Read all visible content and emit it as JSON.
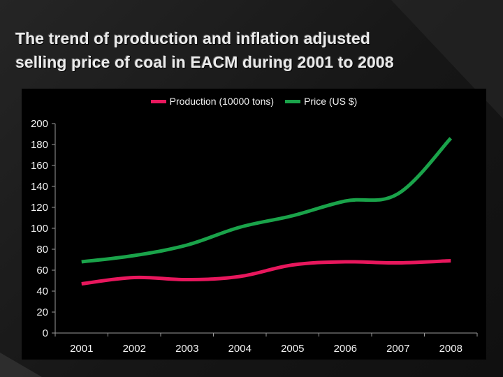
{
  "slide": {
    "title_line1": "The trend of production and inflation adjusted",
    "title_line2": "selling price of coal in EACM during 2001 to 2008"
  },
  "chart_data": {
    "type": "line",
    "categories": [
      "2001",
      "2002",
      "2003",
      "2004",
      "2005",
      "2006",
      "2007",
      "2008"
    ],
    "series": [
      {
        "name": "Production (10000 tons)",
        "color": "#e8175d",
        "values": [
          47,
          53,
          51,
          54,
          65,
          68,
          67,
          69
        ]
      },
      {
        "name": "Price (US $)",
        "color": "#1aa34a",
        "values": [
          68,
          74,
          84,
          101,
          112,
          126,
          133,
          186
        ]
      }
    ],
    "y_ticks": [
      "0",
      "20",
      "40",
      "60",
      "80",
      "100",
      "120",
      "140",
      "160",
      "180",
      "200"
    ],
    "ylim": [
      0,
      200
    ],
    "grid": false,
    "legend": "top-center",
    "smooth": true
  }
}
